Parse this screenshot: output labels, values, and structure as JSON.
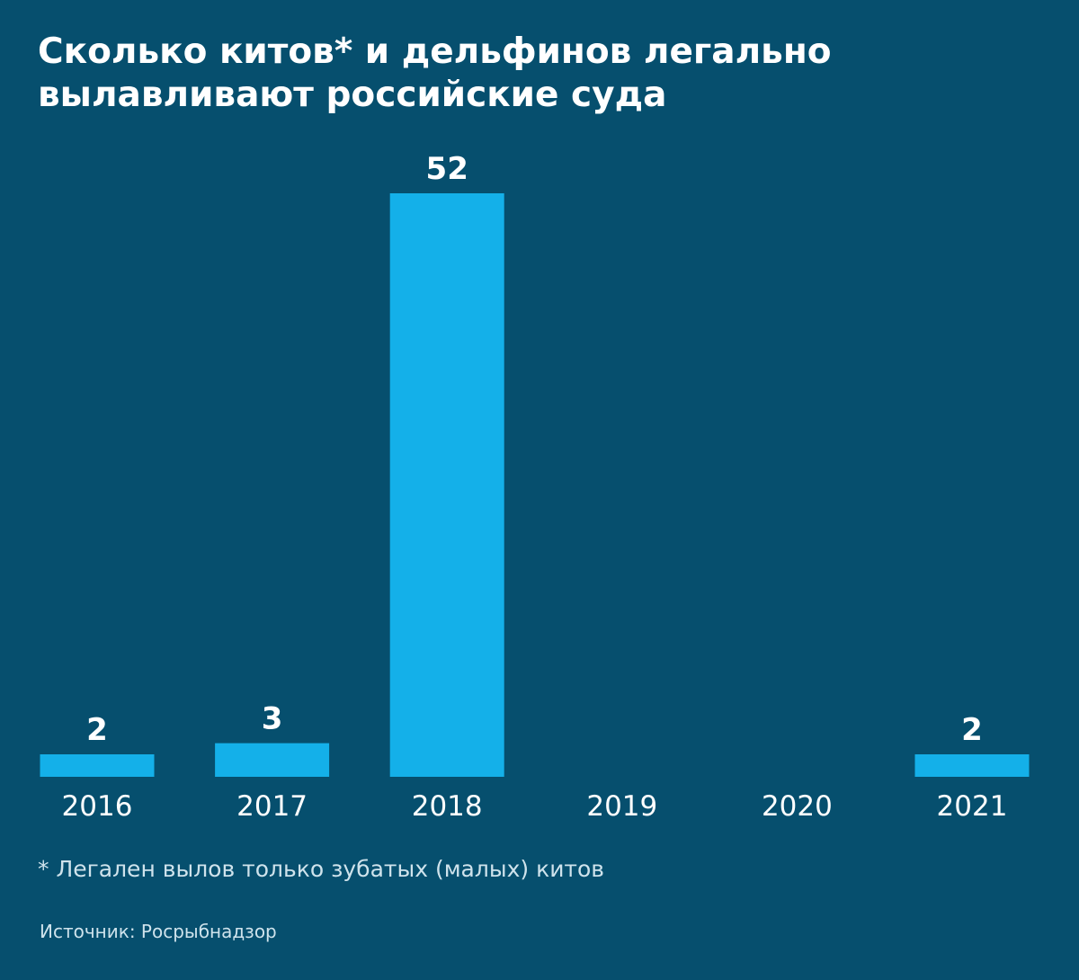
{
  "title": "Сколько китов* и дельфинов легально\nвылавливают российские суда",
  "footnote": "* Легален вылов только зубатых (малых) китов",
  "source": "Источник: Росрыбнадзор",
  "colors": {
    "background": "#064f6e",
    "bar": "#14b0e9",
    "text": "#ffffff",
    "muted_text": "#cfe3ec"
  },
  "chart_data": {
    "type": "bar",
    "categories": [
      "2016",
      "2017",
      "2018",
      "2019",
      "2020",
      "2021"
    ],
    "values": [
      2,
      3,
      52,
      null,
      null,
      2
    ],
    "data_labels": [
      "2",
      "3",
      "52",
      "",
      "",
      "2"
    ],
    "ylim": [
      0,
      52
    ],
    "grid": false,
    "y_axis_visible": false
  }
}
